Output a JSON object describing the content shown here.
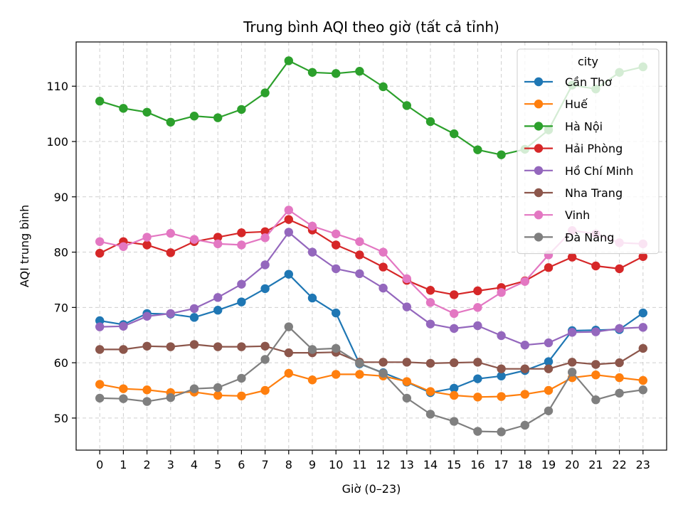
{
  "chart_data": {
    "type": "line",
    "title": "Trung bình AQI theo giờ (tất cả tỉnh)",
    "xlabel": "Giờ (0–23)",
    "ylabel": "AQI trung bình",
    "x": [
      0,
      1,
      2,
      3,
      4,
      5,
      6,
      7,
      8,
      9,
      10,
      11,
      12,
      13,
      14,
      15,
      16,
      17,
      18,
      19,
      20,
      21,
      22,
      23
    ],
    "xlim": [
      -1,
      24
    ],
    "ylim": [
      44.2,
      118
    ],
    "yticks": [
      50,
      60,
      70,
      80,
      90,
      100,
      110
    ],
    "grid": true,
    "legend": {
      "title": "city",
      "placement": "top-right"
    },
    "series": [
      {
        "name": "Cần Thơ",
        "color": "#1f77b4",
        "values": [
          67.6,
          66.9,
          68.9,
          68.8,
          68.2,
          69.5,
          71.0,
          73.4,
          76.0,
          71.7,
          69.0,
          59.8,
          58.2,
          56.5,
          54.6,
          55.4,
          57.1,
          57.6,
          58.6,
          60.2,
          65.8,
          65.9,
          66.0,
          69.0
        ]
      },
      {
        "name": "Huế",
        "color": "#ff7f0e",
        "values": [
          56.1,
          55.3,
          55.1,
          54.6,
          54.7,
          54.1,
          54.0,
          55.0,
          58.1,
          56.9,
          57.9,
          57.9,
          57.6,
          56.6,
          54.8,
          54.1,
          53.8,
          53.9,
          54.3,
          55.0,
          57.3,
          57.8,
          57.3,
          56.8
        ]
      },
      {
        "name": "Hà Nội",
        "color": "#2ca02c",
        "values": [
          107.3,
          106.0,
          105.3,
          103.5,
          104.6,
          104.3,
          105.8,
          108.8,
          114.6,
          112.5,
          112.3,
          112.7,
          109.9,
          106.5,
          103.6,
          101.4,
          98.5,
          97.6,
          98.6,
          102.1,
          110.2,
          109.5,
          112.5,
          113.5
        ]
      },
      {
        "name": "Hải Phòng",
        "color": "#d62728",
        "values": [
          79.8,
          81.9,
          81.3,
          79.9,
          81.9,
          82.7,
          83.5,
          83.7,
          85.9,
          84.0,
          81.3,
          79.5,
          77.3,
          74.9,
          73.1,
          72.3,
          73.0,
          73.6,
          74.8,
          77.2,
          79.1,
          77.5,
          77.0,
          79.2
        ]
      },
      {
        "name": "Hồ Chí Minh",
        "color": "#9467bd",
        "values": [
          66.5,
          66.6,
          68.4,
          68.9,
          69.8,
          71.8,
          74.2,
          77.7,
          83.6,
          80.0,
          77.0,
          76.1,
          73.5,
          70.1,
          67.0,
          66.2,
          66.7,
          64.9,
          63.2,
          63.6,
          65.5,
          65.6,
          66.2,
          66.4
        ]
      },
      {
        "name": "Nha Trang",
        "color": "#8c564b",
        "values": [
          62.4,
          62.4,
          63.0,
          62.9,
          63.3,
          62.9,
          62.9,
          63.0,
          61.8,
          61.8,
          61.9,
          60.1,
          60.1,
          60.1,
          59.9,
          60.0,
          60.1,
          58.9,
          58.9,
          58.9,
          60.1,
          59.7,
          60.0,
          62.6
        ]
      },
      {
        "name": "Vinh",
        "color": "#e377c2",
        "values": [
          81.9,
          81.0,
          82.7,
          83.4,
          82.3,
          81.5,
          81.3,
          82.6,
          87.6,
          84.7,
          83.3,
          81.9,
          80.0,
          75.2,
          70.9,
          68.9,
          70.0,
          72.7,
          74.7,
          79.5,
          83.9,
          83.3,
          81.7,
          81.5
        ]
      },
      {
        "name": "Đà Nẵng",
        "color": "#7f7f7f",
        "values": [
          53.6,
          53.5,
          53.0,
          53.7,
          55.3,
          55.5,
          57.2,
          60.6,
          66.5,
          62.4,
          62.6,
          59.9,
          58.1,
          53.6,
          50.7,
          49.4,
          47.6,
          47.5,
          48.7,
          51.3,
          58.3,
          53.3,
          54.5,
          55.1
        ]
      }
    ]
  }
}
